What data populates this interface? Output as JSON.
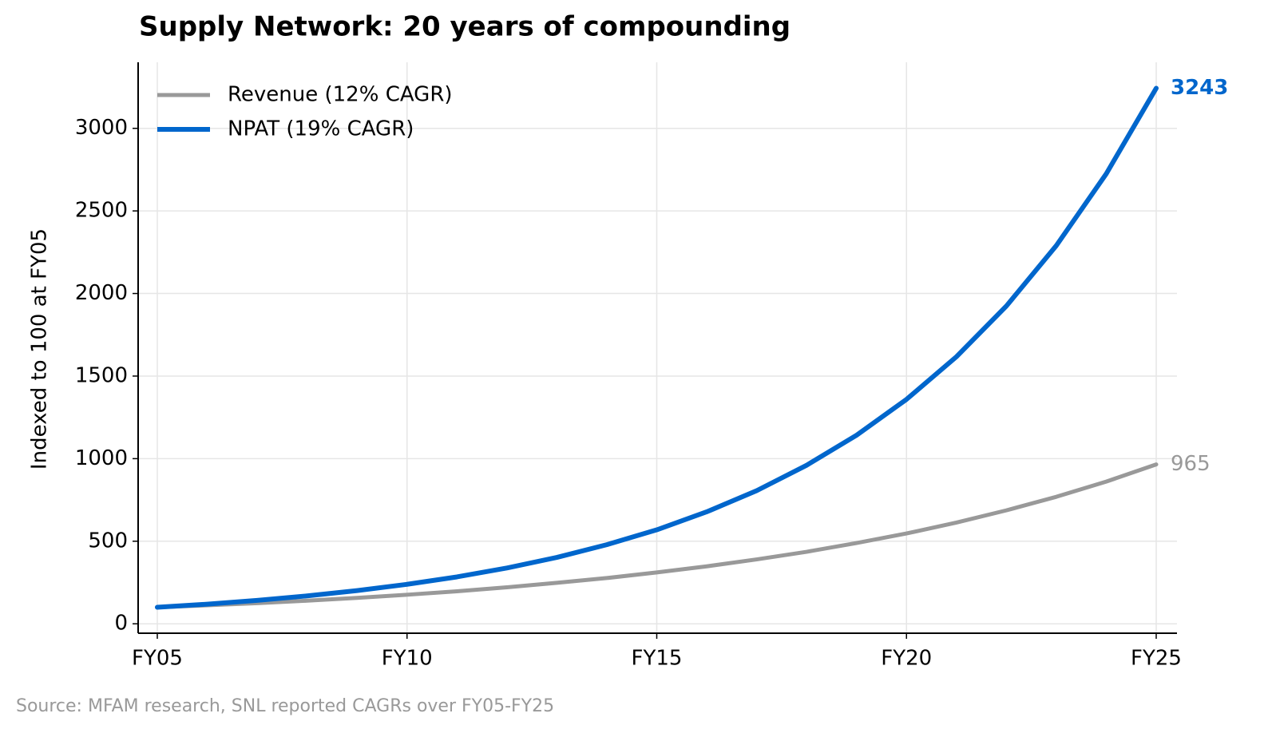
{
  "chart_data": {
    "type": "line",
    "title": "Supply Network: 20 years of compounding",
    "y_label": "Indexed to 100 at FY05",
    "source": "Source: MFAM research, SNL reported CAGRs over FY05-FY25",
    "categories": [
      "FY05",
      null,
      null,
      null,
      null,
      "FY10",
      null,
      null,
      null,
      null,
      "FY15",
      null,
      null,
      null,
      null,
      "FY20",
      null,
      null,
      null,
      null,
      "FY25"
    ],
    "series": [
      {
        "name": "Revenue (12% CAGR)",
        "color": "#999999",
        "values": [
          100,
          112,
          125,
          140,
          157,
          176,
          197,
          221,
          248,
          277,
          311,
          348,
          390,
          436,
          489,
          547,
          613,
          687,
          769,
          861,
          965
        ]
      },
      {
        "name": "NPAT (19% CAGR)",
        "color": "#0066cc",
        "values": [
          100,
          119,
          142,
          169,
          201,
          239,
          284,
          338,
          402,
          479,
          569,
          678,
          806,
          960,
          1142,
          1359,
          1617,
          1924,
          2290,
          2725,
          3243
        ]
      }
    ],
    "ylim": [
      -57,
      3400
    ],
    "yticks": [
      0,
      500,
      1000,
      1500,
      2000,
      2500,
      3000
    ],
    "grid": true,
    "legend": "upper left"
  }
}
